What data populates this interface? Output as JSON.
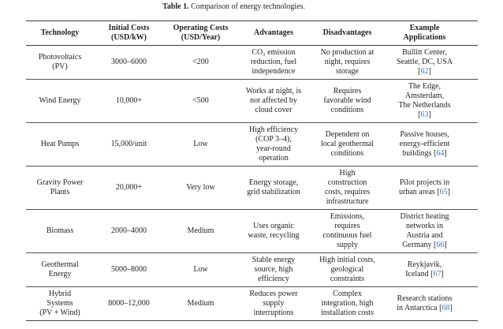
{
  "caption": {
    "label": "Table 1.",
    "text": " Comparison of energy technologies."
  },
  "punctuation": {
    "cite_open": "[",
    "cite_close": "]"
  },
  "colors": {
    "citation_link": "#3b74b5",
    "rule": "#3d3d3d",
    "text": "#232323",
    "background": "#ffffff"
  },
  "table": {
    "headers": [
      "Technology",
      "Initial Costs\n(USD/kW)",
      "Operating Costs\n(USD/Year)",
      "Advantages",
      "Disadvantages",
      "Example\nApplications"
    ],
    "rows": [
      {
        "technology": "Photovoltaics\n(PV)",
        "initial_costs": "3000–6000",
        "operating_costs": "<200",
        "advantages": "CO₂ emission\nreduction, fuel\nindependence",
        "disadvantages": "No production at\nnight, requires\nstorage",
        "application": {
          "text": "Bullitt Center,\nSeattle, DC, USA\n",
          "cite": "62"
        }
      },
      {
        "technology": "Wind Energy",
        "initial_costs": "10,000+",
        "operating_costs": "<500",
        "advantages": "Works at night, is\nnot affected by\ncloud cover",
        "disadvantages": "Requires\nfavorable wind\nconditions",
        "application": {
          "text": "The Edge,\nAmsterdam,\nThe Netherlands\n",
          "cite": "63"
        }
      },
      {
        "technology": "Heat Pumps",
        "initial_costs": "15,000/unit",
        "operating_costs": "Low",
        "advantages": "High efficiency\n(COP 3–4),\nyear-round\noperation",
        "disadvantages": "Dependent on\nlocal geothermal\nconditions",
        "application": {
          "text": "Passive houses,\nenergy-efficient\nbuildings ",
          "cite": "64"
        }
      },
      {
        "technology": "Gravity Power\nPlants",
        "initial_costs": "20,000+",
        "operating_costs": "Very low",
        "advantages": "Energy storage,\ngrid stabilization",
        "disadvantages": "High\nconstruction\ncosts, requires\ninfrastructure",
        "application": {
          "text": "Pilot projects in\nurban areas ",
          "cite": "65"
        }
      },
      {
        "technology": "Biomass",
        "initial_costs": "2000–4000",
        "operating_costs": "Medium",
        "advantages": "Uses organic\nwaste, recycling",
        "disadvantages": "Emissions,\nrequires\ncontinuous fuel\nsupply",
        "application": {
          "text": "District heating\nnetworks in\nAustria and\nGermany ",
          "cite": "66"
        }
      },
      {
        "technology": "Geothermal\nEnergy",
        "initial_costs": "5000–8000",
        "operating_costs": "Low",
        "advantages": "Stable energy\nsource, high\nefficiency",
        "disadvantages": "High initial costs,\ngeological\nconstraints",
        "application": {
          "text": "Reykjavik,\nIceland ",
          "cite": "67"
        }
      },
      {
        "technology": "Hybrid\nSystems\n(PV + Wind)",
        "initial_costs": "8000–12,000",
        "operating_costs": "Medium",
        "advantages": "Reduces power\nsupply\ninterruptions",
        "disadvantages": "Complex\nintegration, high\ninstallation costs",
        "application": {
          "text": "Research stations\nin Antarctica ",
          "cite": "68"
        }
      }
    ]
  }
}
